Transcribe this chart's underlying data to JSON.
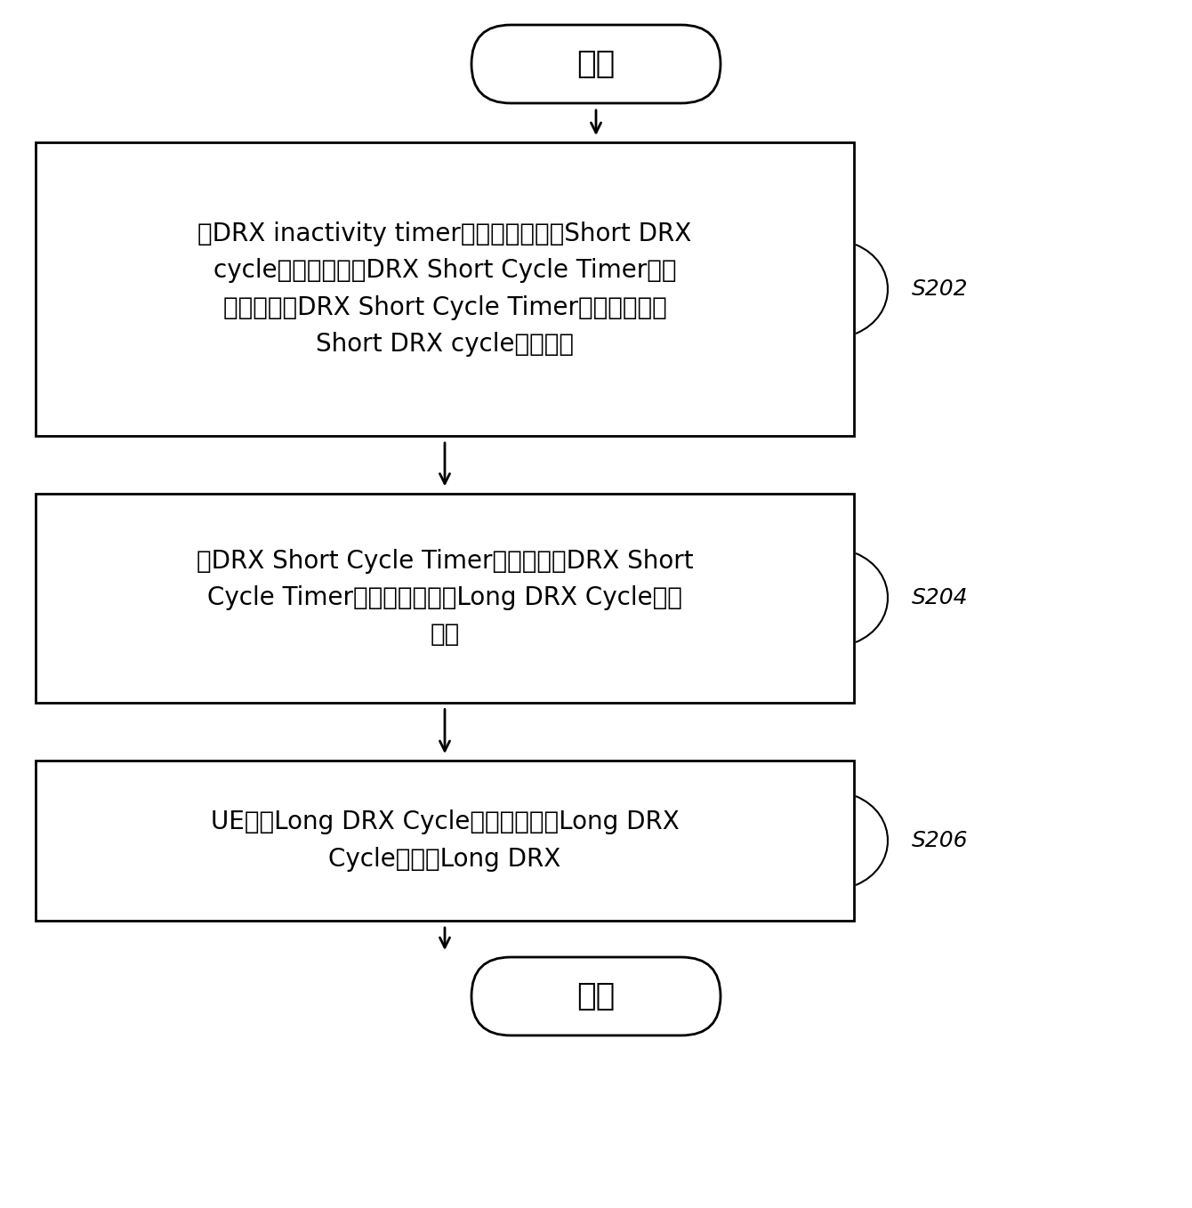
{
  "bg_color": "#ffffff",
  "start_label": "开始",
  "end_label": "结束",
  "box1_lines": [
    "当DRX inactivity timer到时时，在预定Short DRX",
    "cycle的起始点启动DRX Short Cycle Timer，其",
    "中，预先将DRX Short Cycle Timer的时长设置为",
    "Short DRX cycle的整数倍"
  ],
  "box2_lines": [
    "当DRX Short Cycle Timer到时时，将DRX Short",
    "Cycle Timer的终止时刻作为Long DRX Cycle的起",
    "始点"
  ],
  "box3_lines": [
    "UE根据Long DRX Cycle的起始点启用Long DRX",
    "Cycle控制的Long DRX"
  ],
  "label1": "S202",
  "label2": "S204",
  "label3": "S206",
  "font_size_box": 20,
  "font_size_terminal": 26,
  "font_size_label": 18,
  "line_width": 2.0,
  "box_edge_color": "#000000",
  "box_face_color": "#ffffff",
  "text_color": "#000000",
  "arrow_color": "#000000",
  "fig_w": 13.4,
  "fig_h": 13.58,
  "dpi": 100
}
